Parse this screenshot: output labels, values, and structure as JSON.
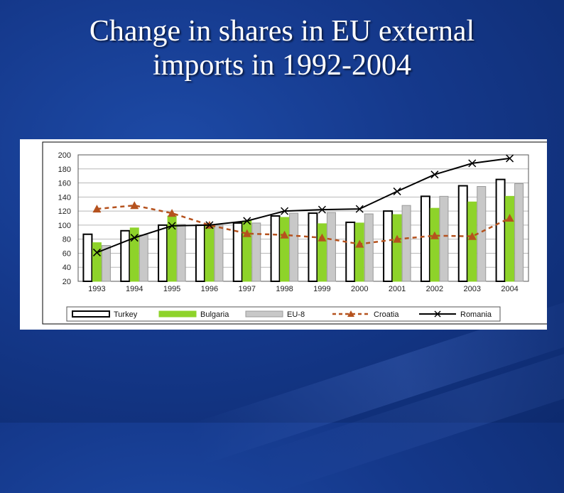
{
  "slide": {
    "title_line1": "Change in shares in EU external",
    "title_line2": "imports in 1992-2004"
  },
  "chart_data": {
    "type": "bar",
    "categories": [
      "1993",
      "1994",
      "1995",
      "1996",
      "1997",
      "1998",
      "1999",
      "2000",
      "2001",
      "2002",
      "2003",
      "2004"
    ],
    "ylim": [
      20,
      200
    ],
    "yticks": [
      20,
      40,
      60,
      80,
      100,
      120,
      140,
      160,
      180,
      200
    ],
    "grid": true,
    "legend_placement": "bottom",
    "series": [
      {
        "name": "Turkey",
        "kind": "bar",
        "color": "#ffffff",
        "stroke": "#000000",
        "values": [
          87,
          92,
          100,
          100,
          103,
          113,
          117,
          104,
          120,
          141,
          156,
          165
        ]
      },
      {
        "name": "Bulgaria",
        "kind": "bar",
        "color": "#8ed32a",
        "stroke": "#8ed32a",
        "values": [
          75,
          96,
          113,
          100,
          106,
          111,
          102,
          103,
          115,
          124,
          133,
          141
        ]
      },
      {
        "name": "EU-8",
        "kind": "bar",
        "color": "#c8c8c8",
        "stroke": "#9a9a9a",
        "values": [
          71,
          86,
          101,
          100,
          103,
          117,
          118,
          116,
          128,
          141,
          155,
          159
        ]
      },
      {
        "name": "Croatia",
        "kind": "line",
        "color": "#b5521e",
        "values": [
          123,
          128,
          117,
          100,
          88,
          86,
          82,
          73,
          80,
          85,
          84,
          110
        ]
      },
      {
        "name": "Romania",
        "kind": "line",
        "color": "#000000",
        "values": [
          61,
          82,
          99,
          100,
          106,
          120,
          122,
          123,
          148,
          172,
          188,
          195
        ]
      }
    ]
  }
}
